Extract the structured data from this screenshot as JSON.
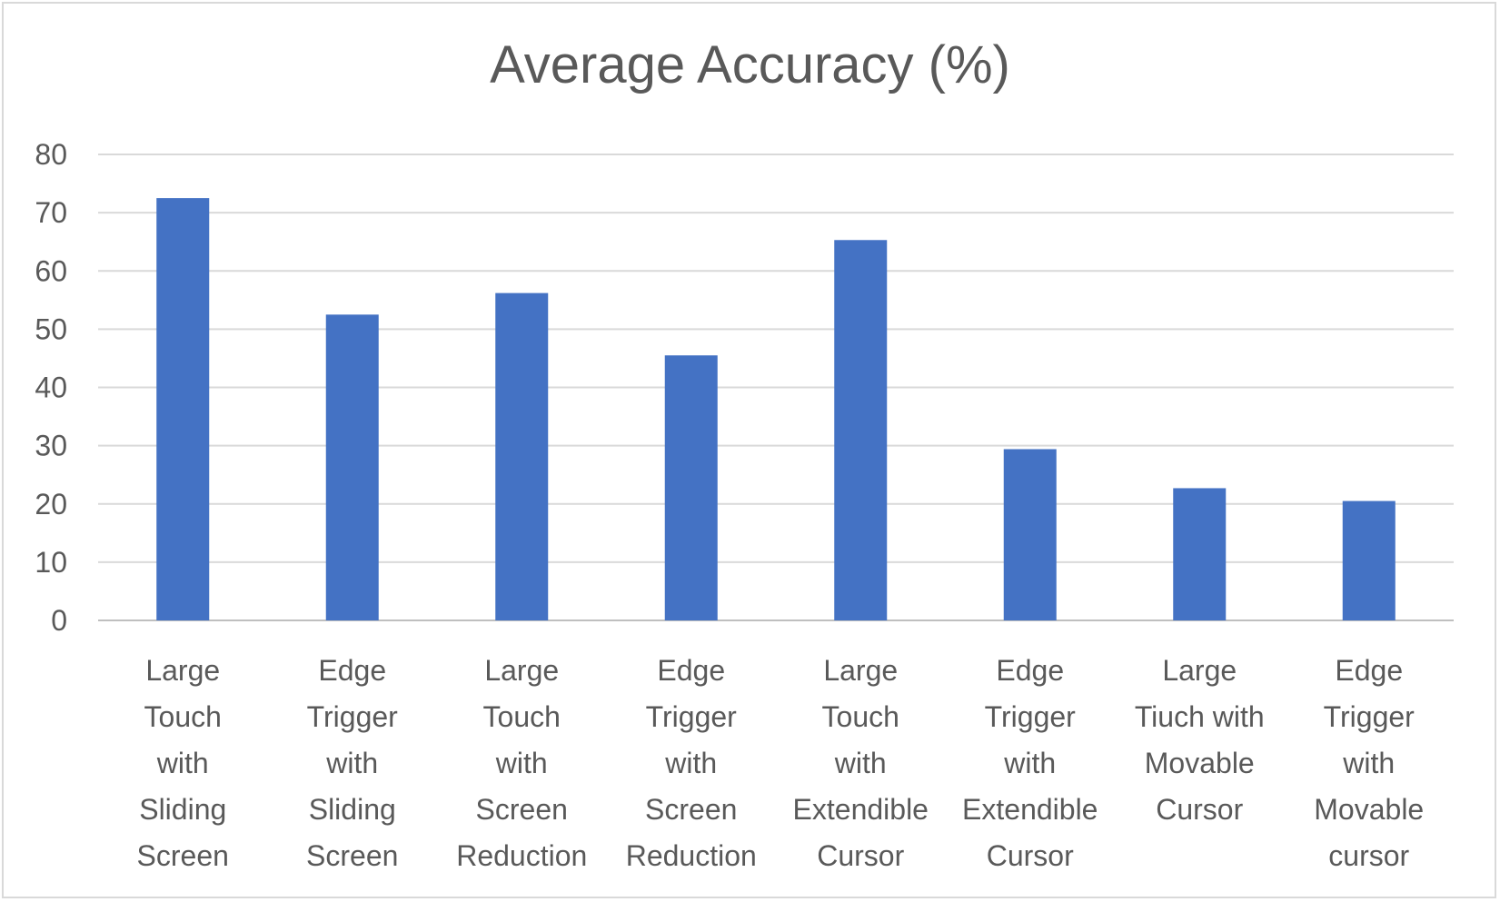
{
  "chart_data": {
    "type": "bar",
    "title": "Average Accuracy (%)",
    "xlabel": "",
    "ylabel": "",
    "ylim": [
      0,
      80
    ],
    "yticks": [
      "0",
      "10",
      "20",
      "30",
      "40",
      "50",
      "60",
      "70",
      "80"
    ],
    "grid": true,
    "legend": "none",
    "bar_color": "#4472c4",
    "categories": [
      [
        "Large",
        "Touch",
        "with",
        "Sliding",
        "Screen"
      ],
      [
        "Edge",
        "Trigger",
        "with",
        "Sliding",
        "Screen"
      ],
      [
        "Large",
        "Touch",
        "with",
        "Screen",
        "Reduction"
      ],
      [
        "Edge",
        "Trigger",
        "with",
        "Screen",
        "Reduction"
      ],
      [
        "Large",
        "Touch",
        "with",
        "Extendible",
        "Cursor"
      ],
      [
        "Edge",
        "Trigger",
        "with",
        "Extendible",
        "Cursor"
      ],
      [
        "Large",
        "Tiuch with",
        "Movable",
        "Cursor"
      ],
      [
        "Edge",
        "Trigger",
        "with",
        "Movable",
        "cursor"
      ]
    ],
    "values": [
      72.5,
      52.5,
      56.2,
      45.5,
      65.3,
      29.4,
      22.7,
      20.5
    ]
  }
}
